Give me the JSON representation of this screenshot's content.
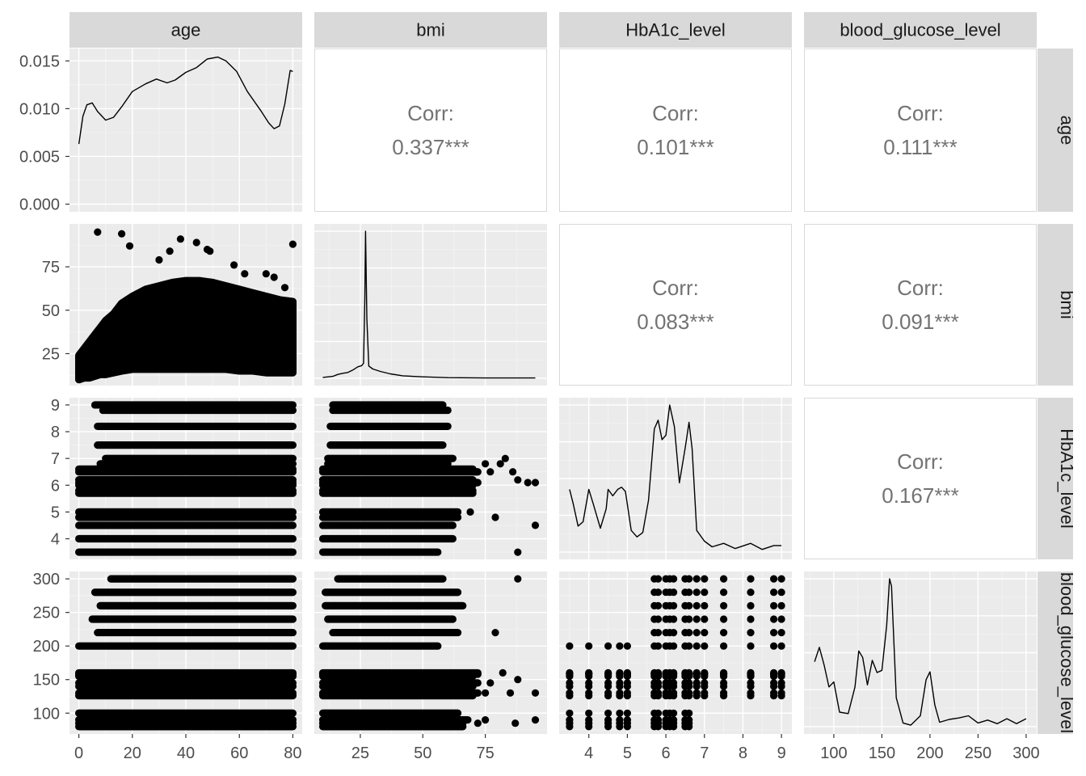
{
  "chart_data": {
    "type": "scatter-matrix",
    "variables": [
      "age",
      "bmi",
      "HbA1c_level",
      "blood_glucose_level"
    ],
    "axis_limits": {
      "age": [
        -3.5,
        83.5
      ],
      "bmi": [
        6.6,
        99.7
      ],
      "HbA1c_level": [
        3.23,
        9.27
      ],
      "blood_glucose_level": [
        69,
        311
      ]
    },
    "x_ticks": {
      "age": [
        0,
        20,
        40,
        60,
        80
      ],
      "bmi": [
        25,
        50,
        75
      ],
      "HbA1c_level": [
        4,
        5,
        6,
        7,
        8,
        9
      ],
      "blood_glucose_level": [
        100,
        150,
        200,
        250,
        300
      ]
    },
    "x_tick_labels": {
      "age": [
        "0",
        "20",
        "40",
        "60",
        "80"
      ],
      "bmi": [
        "25",
        "50",
        "75"
      ],
      "HbA1c_level": [
        "4",
        "5",
        "6",
        "7",
        "8",
        "9"
      ],
      "blood_glucose_level": [
        "100",
        "150",
        "200",
        "250",
        "300"
      ]
    },
    "density_axis": {
      "lim": [
        -0.0008,
        0.0163
      ],
      "ticks": [
        0,
        0.005,
        0.01,
        0.015
      ],
      "tick_labels": [
        "0.000",
        "0.005",
        "0.010",
        "0.015"
      ]
    },
    "y_ticks": {
      "bmi": [
        25,
        50,
        75
      ],
      "HbA1c_level": [
        4,
        5,
        6,
        7,
        8,
        9
      ],
      "blood_glucose_level": [
        100,
        150,
        200,
        250,
        300
      ]
    },
    "y_tick_labels": {
      "bmi": [
        "25",
        "50",
        "75"
      ],
      "HbA1c_level": [
        "4",
        "5",
        "6",
        "7",
        "8",
        "9"
      ],
      "blood_glucose_level": [
        "100",
        "150",
        "200",
        "250",
        "300"
      ]
    },
    "correlations": [
      {
        "row": "age",
        "col": "bmi",
        "label": "Corr:",
        "value": "0.337***"
      },
      {
        "row": "age",
        "col": "HbA1c_level",
        "label": "Corr:",
        "value": "0.101***"
      },
      {
        "row": "age",
        "col": "blood_glucose_level",
        "label": "Corr:",
        "value": "0.111***"
      },
      {
        "row": "bmi",
        "col": "HbA1c_level",
        "label": "Corr:",
        "value": "0.083***"
      },
      {
        "row": "bmi",
        "col": "blood_glucose_level",
        "label": "Corr:",
        "value": "0.091***"
      },
      {
        "row": "HbA1c_level",
        "col": "blood_glucose_level",
        "label": "Corr:",
        "value": "0.167***"
      }
    ],
    "densities": {
      "age": [
        [
          0,
          0.0063
        ],
        [
          1.5,
          0.0092
        ],
        [
          3,
          0.0104
        ],
        [
          5,
          0.0106
        ],
        [
          7,
          0.0097
        ],
        [
          10,
          0.0088
        ],
        [
          13,
          0.0091
        ],
        [
          16,
          0.0102
        ],
        [
          20,
          0.0118
        ],
        [
          25,
          0.0126
        ],
        [
          29,
          0.0131
        ],
        [
          33,
          0.0127
        ],
        [
          36,
          0.013
        ],
        [
          40,
          0.0138
        ],
        [
          44,
          0.0143
        ],
        [
          48,
          0.0152
        ],
        [
          52,
          0.0154
        ],
        [
          55,
          0.015
        ],
        [
          59,
          0.0139
        ],
        [
          63,
          0.0118
        ],
        [
          68,
          0.0098
        ],
        [
          71,
          0.0085
        ],
        [
          73,
          0.0079
        ],
        [
          75,
          0.0082
        ],
        [
          77,
          0.0105
        ],
        [
          79,
          0.014
        ],
        [
          80,
          0.0139
        ]
      ],
      "bmi": [
        [
          10,
          0.03
        ],
        [
          14,
          0.07
        ],
        [
          16,
          0.14
        ],
        [
          18,
          0.18
        ],
        [
          20,
          0.21
        ],
        [
          22,
          0.3
        ],
        [
          24,
          0.42
        ],
        [
          25.5,
          0.46
        ],
        [
          26.3,
          0.55
        ],
        [
          26.8,
          2.9
        ],
        [
          27.1,
          5.4
        ],
        [
          27.6,
          2.2
        ],
        [
          28.4,
          0.45
        ],
        [
          30,
          0.34
        ],
        [
          33,
          0.25
        ],
        [
          37,
          0.16
        ],
        [
          42,
          0.09
        ],
        [
          50,
          0.05
        ],
        [
          60,
          0.02
        ],
        [
          75,
          0.01
        ],
        [
          95,
          0.01
        ]
      ],
      "HbA1c_level": [
        [
          3.5,
          1.45
        ],
        [
          3.6,
          1.1
        ],
        [
          3.72,
          0.6
        ],
        [
          3.85,
          0.7
        ],
        [
          4.0,
          1.45
        ],
        [
          4.12,
          1.1
        ],
        [
          4.3,
          0.55
        ],
        [
          4.45,
          1.0
        ],
        [
          4.5,
          1.45
        ],
        [
          4.62,
          1.3
        ],
        [
          4.75,
          1.45
        ],
        [
          4.85,
          1.5
        ],
        [
          4.95,
          1.4
        ],
        [
          5.1,
          0.5
        ],
        [
          5.25,
          0.35
        ],
        [
          5.4,
          0.45
        ],
        [
          5.55,
          1.2
        ],
        [
          5.7,
          2.85
        ],
        [
          5.8,
          3.05
        ],
        [
          5.9,
          2.6
        ],
        [
          6.0,
          2.7
        ],
        [
          6.1,
          3.4
        ],
        [
          6.22,
          2.9
        ],
        [
          6.35,
          1.6
        ],
        [
          6.5,
          2.4
        ],
        [
          6.6,
          3.0
        ],
        [
          6.68,
          2.4
        ],
        [
          6.8,
          0.5
        ],
        [
          7.0,
          0.25
        ],
        [
          7.2,
          0.12
        ],
        [
          7.5,
          0.2
        ],
        [
          7.8,
          0.08
        ],
        [
          8.2,
          0.2
        ],
        [
          8.5,
          0.06
        ],
        [
          8.8,
          0.15
        ],
        [
          9.0,
          0.15
        ]
      ],
      "blood_glucose_level": [
        [
          80,
          0.009
        ],
        [
          85,
          0.011
        ],
        [
          90,
          0.0085
        ],
        [
          95,
          0.0055
        ],
        [
          100,
          0.0062
        ],
        [
          106,
          0.002
        ],
        [
          115,
          0.0018
        ],
        [
          122,
          0.0055
        ],
        [
          126,
          0.0105
        ],
        [
          130,
          0.0096
        ],
        [
          135,
          0.0058
        ],
        [
          140,
          0.0092
        ],
        [
          145,
          0.0075
        ],
        [
          150,
          0.0078
        ],
        [
          155,
          0.014
        ],
        [
          158,
          0.0205
        ],
        [
          160,
          0.0195
        ],
        [
          165,
          0.004
        ],
        [
          172,
          0.0005
        ],
        [
          180,
          0.0002
        ],
        [
          190,
          0.0015
        ],
        [
          196,
          0.0065
        ],
        [
          200,
          0.0076
        ],
        [
          205,
          0.003
        ],
        [
          210,
          0.0006
        ],
        [
          220,
          0.001
        ],
        [
          230,
          0.0012
        ],
        [
          240,
          0.0015
        ],
        [
          250,
          0.0005
        ],
        [
          260,
          0.0009
        ],
        [
          270,
          0.0004
        ],
        [
          280,
          0.0011
        ],
        [
          290,
          0.0004
        ],
        [
          300,
          0.0011
        ]
      ]
    },
    "scatter_rows": {
      "bmi_vs_age": {
        "cloud": [
          [
            0,
            10,
            24
          ],
          [
            2,
            11,
            28
          ],
          [
            4,
            11,
            32
          ],
          [
            6,
            12,
            36
          ],
          [
            8,
            13,
            40
          ],
          [
            10,
            13,
            44
          ],
          [
            13,
            14,
            48
          ],
          [
            16,
            15,
            54
          ],
          [
            20,
            16,
            58
          ],
          [
            25,
            16,
            62
          ],
          [
            30,
            16,
            64
          ],
          [
            35,
            16,
            66
          ],
          [
            40,
            16,
            67
          ],
          [
            45,
            16,
            67
          ],
          [
            50,
            16,
            66
          ],
          [
            55,
            16,
            64
          ],
          [
            60,
            15,
            62
          ],
          [
            65,
            15,
            60
          ],
          [
            70,
            14,
            58
          ],
          [
            75,
            14,
            56
          ],
          [
            80,
            14,
            55
          ]
        ],
        "outliers": [
          [
            7,
            95
          ],
          [
            16,
            94
          ],
          [
            19,
            87
          ],
          [
            30,
            79
          ],
          [
            34,
            84
          ],
          [
            38,
            91
          ],
          [
            44,
            89
          ],
          [
            49,
            84
          ],
          [
            48,
            85
          ],
          [
            58,
            76
          ],
          [
            62,
            71
          ],
          [
            70,
            71
          ],
          [
            73,
            69
          ],
          [
            77,
            63
          ],
          [
            80,
            88
          ]
        ]
      },
      "hba1c_vs_age": {
        "levels": [
          [
            3.5,
            0,
            80
          ],
          [
            4.0,
            0,
            80
          ],
          [
            4.5,
            0,
            80
          ],
          [
            4.8,
            0,
            80
          ],
          [
            5.0,
            0,
            80
          ],
          [
            5.7,
            0,
            80
          ],
          [
            5.8,
            0,
            80
          ],
          [
            6.0,
            0,
            80
          ],
          [
            6.1,
            0,
            80
          ],
          [
            6.2,
            0,
            80
          ],
          [
            6.5,
            0,
            80
          ],
          [
            6.6,
            0,
            80
          ],
          [
            6.8,
            8,
            80
          ],
          [
            7.0,
            10,
            80
          ],
          [
            7.5,
            7,
            80
          ],
          [
            8.2,
            7,
            80
          ],
          [
            8.8,
            9,
            80
          ],
          [
            9.0,
            6,
            80
          ]
        ]
      },
      "hba1c_vs_bmi": {
        "levels": [
          [
            3.5,
            10,
            56
          ],
          [
            4.0,
            10,
            62
          ],
          [
            4.5,
            10,
            62
          ],
          [
            4.8,
            10,
            64
          ],
          [
            5.0,
            10,
            64
          ],
          [
            5.7,
            10,
            70
          ],
          [
            5.8,
            10,
            70
          ],
          [
            6.0,
            10,
            70
          ],
          [
            6.1,
            10,
            72
          ],
          [
            6.2,
            10,
            70
          ],
          [
            6.5,
            10,
            72
          ],
          [
            6.6,
            10,
            70
          ],
          [
            6.8,
            12,
            60
          ],
          [
            7.0,
            12,
            62
          ],
          [
            7.5,
            13,
            58
          ],
          [
            8.2,
            13,
            60
          ],
          [
            8.8,
            14,
            60
          ],
          [
            9.0,
            14,
            58
          ]
        ],
        "outliers": [
          [
            92,
            6.1
          ],
          [
            95,
            6.1
          ],
          [
            88,
            6.2
          ],
          [
            86,
            6.5
          ],
          [
            81,
            6.8
          ],
          [
            83,
            7.0
          ],
          [
            77,
            6.5
          ],
          [
            75,
            6.8
          ],
          [
            79,
            4.8
          ],
          [
            88,
            3.5
          ],
          [
            95,
            4.5
          ],
          [
            69,
            5.0
          ]
        ]
      },
      "glucose_vs_age": {
        "levels": [
          [
            80,
            0,
            80
          ],
          [
            85,
            0,
            80
          ],
          [
            90,
            0,
            80
          ],
          [
            100,
            0,
            80
          ],
          [
            126,
            0,
            80
          ],
          [
            130,
            0,
            80
          ],
          [
            140,
            0,
            80
          ],
          [
            145,
            0,
            80
          ],
          [
            155,
            0,
            80
          ],
          [
            158,
            0,
            80
          ],
          [
            159,
            0,
            80
          ],
          [
            160,
            0,
            80
          ],
          [
            200,
            0,
            80
          ],
          [
            220,
            7,
            80
          ],
          [
            240,
            5,
            80
          ],
          [
            260,
            8,
            80
          ],
          [
            280,
            6,
            80
          ],
          [
            300,
            12,
            80
          ]
        ]
      },
      "glucose_vs_bmi": {
        "levels": [
          [
            80,
            10,
            66
          ],
          [
            85,
            10,
            66
          ],
          [
            90,
            10,
            68
          ],
          [
            100,
            10,
            64
          ],
          [
            126,
            10,
            70
          ],
          [
            130,
            10,
            72
          ],
          [
            140,
            10,
            70
          ],
          [
            145,
            10,
            72
          ],
          [
            155,
            10,
            70
          ],
          [
            158,
            10,
            72
          ],
          [
            159,
            10,
            70
          ],
          [
            160,
            10,
            72
          ],
          [
            200,
            10,
            56
          ],
          [
            220,
            14,
            64
          ],
          [
            240,
            12,
            62
          ],
          [
            260,
            11,
            66
          ],
          [
            280,
            11,
            64
          ],
          [
            300,
            16,
            58
          ]
        ],
        "outliers": [
          [
            72,
            85
          ],
          [
            75,
            90
          ],
          [
            87,
            85
          ],
          [
            95,
            90
          ],
          [
            75,
            130
          ],
          [
            85,
            130
          ],
          [
            95,
            130
          ],
          [
            77,
            145
          ],
          [
            82,
            160
          ],
          [
            88,
            150
          ],
          [
            79,
            220
          ],
          [
            88,
            300
          ]
        ]
      },
      "glucose_vs_hba1c": {
        "hba1c_levels": [
          3.5,
          4.0,
          4.5,
          4.8,
          5.0,
          5.7,
          5.8,
          6.0,
          6.1,
          6.2,
          6.5,
          6.6,
          6.8,
          7.0,
          7.5,
          8.2,
          8.8,
          9.0
        ],
        "glucose_low": [
          80,
          85,
          90,
          100,
          126,
          130,
          140,
          145,
          155,
          158,
          159,
          160
        ],
        "glucose_high": [
          200,
          220,
          240,
          260,
          280,
          300
        ],
        "high_from_hba1c": 5.7,
        "low_only_max_hba1c": 6.6,
        "no_low_above_hba1c": 6.7,
        "extra_low_excluded_for_high": [
          80,
          85,
          90,
          100
        ]
      }
    }
  }
}
